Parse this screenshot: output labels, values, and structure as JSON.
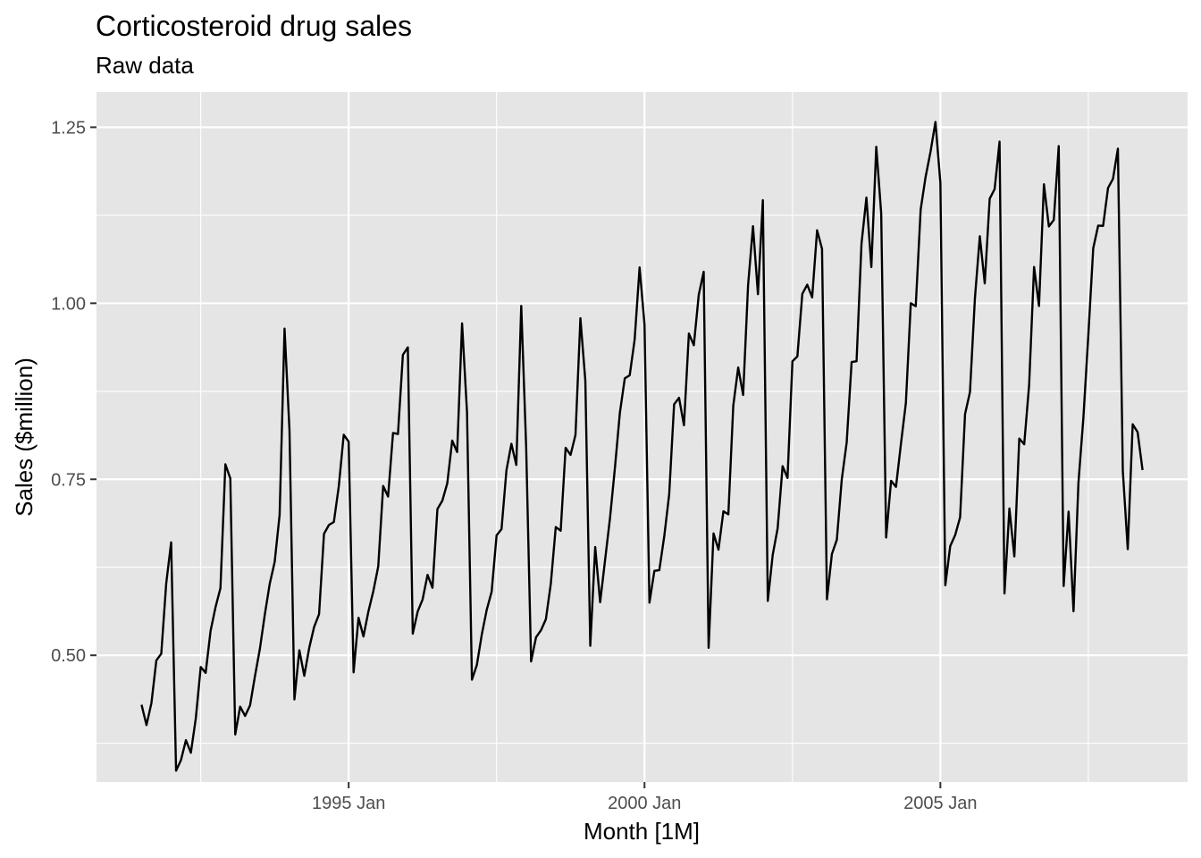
{
  "chart_data": {
    "type": "line",
    "title": "Corticosteroid drug sales",
    "subtitle": "Raw data",
    "xlabel": "Month [1M]",
    "ylabel": "Sales ($million)",
    "x_start": "1991 Jul",
    "x_ticks": [
      "1995 Jan",
      "2000 Jan",
      "2005 Jan"
    ],
    "y_ticks": [
      "0.50",
      "0.75",
      "1.00",
      "1.25"
    ],
    "ylim": [
      0.32,
      1.3
    ],
    "grid": true,
    "colors": {
      "panel": "#e5e5e5",
      "grid": "#ffffff",
      "line": "#000000",
      "tick_text": "#4d4d4d"
    },
    "series": [
      {
        "values": [
          0.4297,
          0.4009,
          0.432,
          0.4927,
          0.5022,
          0.602,
          0.6604,
          0.3361,
          0.3513,
          0.3795,
          0.3616,
          0.4104,
          0.4834,
          0.4751,
          0.5347,
          0.5684,
          0.5954,
          0.7713,
          0.7512,
          0.3876,
          0.4271,
          0.4139,
          0.4288,
          0.4705,
          0.5093,
          0.5581,
          0.6017,
          0.6327,
          0.6995,
          0.9639,
          0.8196,
          0.4373,
          0.5072,
          0.4709,
          0.5105,
          0.5403,
          0.5584,
          0.6726,
          0.6851,
          0.6894,
          0.74,
          0.8132,
          0.8035,
          0.4758,
          0.5533,
          0.5268,
          0.5621,
          0.591,
          0.6262,
          0.7405,
          0.7255,
          0.8158,
          0.8143,
          0.9268,
          0.9374,
          0.5307,
          0.5622,
          0.5794,
          0.6143,
          0.5959,
          0.7077,
          0.7197,
          0.7443,
          0.805,
          0.7887,
          0.9714,
          0.8455,
          0.4654,
          0.4863,
          0.5296,
          0.5646,
          0.5905,
          0.6703,
          0.6792,
          0.7628,
          0.8004,
          0.7704,
          0.9962,
          0.7958,
          0.4913,
          0.5256,
          0.5355,
          0.5514,
          0.6018,
          0.6822,
          0.6769,
          0.7947,
          0.7846,
          0.8131,
          0.9787,
          0.8899,
          0.5135,
          0.6537,
          0.5754,
          0.6351,
          0.6948,
          0.7663,
          0.8444,
          0.8934,
          0.8978,
          0.9484,
          1.0509,
          0.9696,
          0.5747,
          0.6199,
          0.6209,
          0.6688,
          0.7284,
          0.8564,
          0.8658,
          0.8268,
          0.957,
          0.9404,
          1.0122,
          1.0447,
          0.5106,
          0.6731,
          0.65,
          0.7046,
          0.7002,
          0.8545,
          0.9088,
          0.8698,
          1.0254,
          1.1095,
          1.0129,
          1.1464,
          0.5772,
          0.6427,
          0.6805,
          0.7686,
          0.7519,
          0.9176,
          0.9245,
          1.0133,
          1.0264,
          1.0084,
          1.1037,
          1.0773,
          0.5795,
          0.6439,
          0.6641,
          0.7496,
          0.8024,
          0.9165,
          0.9176,
          1.0844,
          1.1502,
          1.0514,
          1.2223,
          1.1275,
          0.6673,
          0.7479,
          0.7393,
          0.8001,
          0.8582,
          1.0,
          0.9958,
          1.133,
          1.1794,
          1.2152,
          1.2576,
          1.171,
          0.5995,
          0.6551,
          0.6708,
          0.696,
          0.8425,
          0.8739,
          1.0066,
          1.0952,
          1.0282,
          1.1486,
          1.1621,
          1.2296,
          0.5878,
          0.7085,
          0.6404,
          0.8079,
          0.7997,
          0.8841,
          1.0516,
          0.9961,
          1.169,
          1.1091,
          1.1184,
          1.2233,
          0.5984,
          0.704,
          0.5626,
          0.7453,
          0.837,
          0.9542,
          1.0781,
          1.1103,
          1.1099,
          1.1638,
          1.1766,
          1.2196,
          0.7617,
          0.6508,
          0.8281,
          0.8169,
          0.7631
        ]
      }
    ]
  }
}
